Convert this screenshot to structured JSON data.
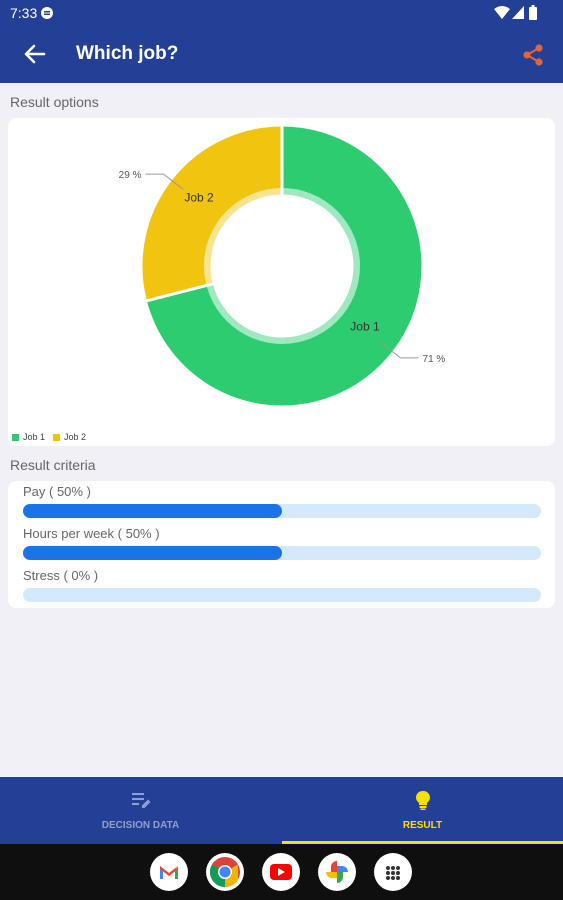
{
  "status_bar": {
    "time": "7:33"
  },
  "app_bar": {
    "title": "Which job?"
  },
  "result_options": {
    "section_label": "Result options",
    "chart_data": {
      "type": "pie",
      "categories": [
        "Job 1",
        "Job 2"
      ],
      "values": [
        71,
        29
      ],
      "value_labels": [
        "71 %",
        "29 %"
      ],
      "colors": [
        "#2ecc71",
        "#f1c40f"
      ],
      "legend": "bottom-left"
    }
  },
  "result_criteria": {
    "section_label": "Result criteria",
    "items": [
      {
        "label": "Pay ( 50% )",
        "value": 0.5
      },
      {
        "label": "Hours per week ( 50% )",
        "value": 0.5
      },
      {
        "label": "Stress ( 0% )",
        "value": 0.0
      }
    ]
  },
  "bottom_nav": {
    "tabs": [
      {
        "label": "DECISION DATA",
        "icon": "edit-list-icon",
        "selected": false
      },
      {
        "label": "RESULT",
        "icon": "lightbulb-icon",
        "selected": true
      }
    ]
  },
  "dock": {
    "apps": [
      "gmail-icon",
      "chrome-icon",
      "youtube-icon",
      "photos-icon",
      "app-drawer-icon"
    ]
  },
  "colors": {
    "primary": "#233f96",
    "accent": "#f4e200",
    "bar_fill": "#1b73e8",
    "bar_track": "#d4e9fb",
    "share": "#e8623a"
  }
}
